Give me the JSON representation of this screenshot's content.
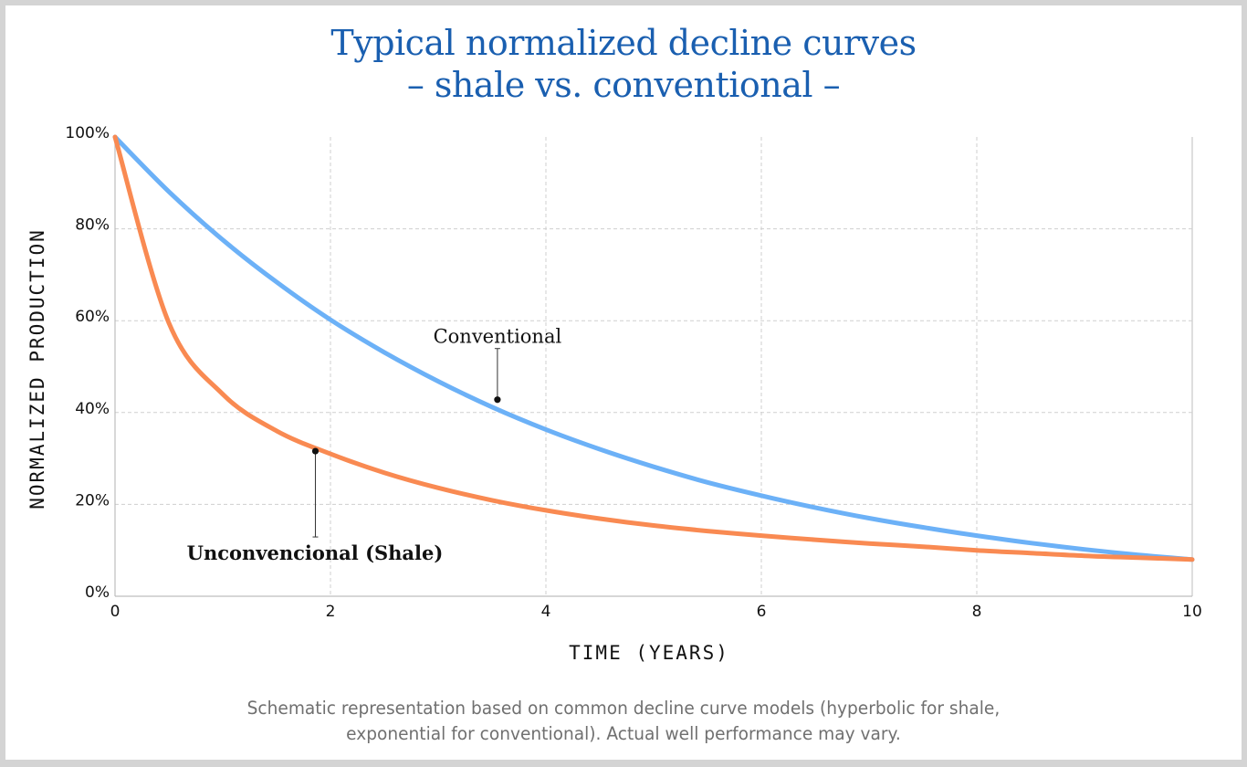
{
  "colors": {
    "title": "#1a5fb0",
    "conventional": "#6cb1f7",
    "shale": "#f98a52",
    "grid": "#cfcfcf",
    "footnote": "#707070"
  },
  "title_lines": [
    "Typical normalized decline curves",
    "– shale vs. conventional –"
  ],
  "footnote_lines": [
    "Schematic representation based on common decline curve models (hyperbolic for shale,",
    "exponential for conventional). Actual well performance may vary."
  ],
  "chart_data": {
    "type": "line",
    "xlabel": "TIME (YEARS)",
    "ylabel": "NORMALIZED PRODUCTION",
    "xlim": [
      0,
      10
    ],
    "ylim": [
      0,
      100
    ],
    "x_ticks": [
      0,
      2,
      4,
      6,
      8,
      10
    ],
    "x_tick_labels": [
      "0",
      "2",
      "4",
      "6",
      "8",
      "10"
    ],
    "y_ticks": [
      0,
      20,
      40,
      60,
      80,
      100
    ],
    "y_tick_labels": [
      "0%",
      "20%",
      "40%",
      "60%",
      "80%",
      "100%"
    ],
    "grid": true,
    "x": [
      0,
      0.5,
      1,
      1.5,
      2,
      2.5,
      3,
      3.5,
      4,
      4.5,
      5,
      5.5,
      6,
      6.5,
      7,
      7.5,
      8,
      8.5,
      9,
      9.5,
      10
    ],
    "series": [
      {
        "name": "Conventional",
        "values": [
          100,
          88.1,
          77.6,
          68.4,
          60.2,
          53.1,
          46.8,
          41.2,
          36.3,
          32.0,
          28.2,
          24.8,
          21.9,
          19.3,
          17.0,
          15.0,
          13.2,
          11.6,
          10.2,
          9.0,
          8.0
        ]
      },
      {
        "name": "Unconvencional (Shale)",
        "values": [
          100,
          59.5,
          44.0,
          36.0,
          31.0,
          26.9,
          23.6,
          20.9,
          18.7,
          16.9,
          15.4,
          14.2,
          13.2,
          12.3,
          11.5,
          10.8,
          10.0,
          9.4,
          8.8,
          8.4,
          8.0
        ]
      }
    ],
    "annotations": [
      {
        "text": "Conventional",
        "series": 0,
        "x": 3.55,
        "y": 42.8
      },
      {
        "text": "Unconvencional (Shale)",
        "series": 1,
        "x": 1.86,
        "y": 31.6
      }
    ]
  }
}
